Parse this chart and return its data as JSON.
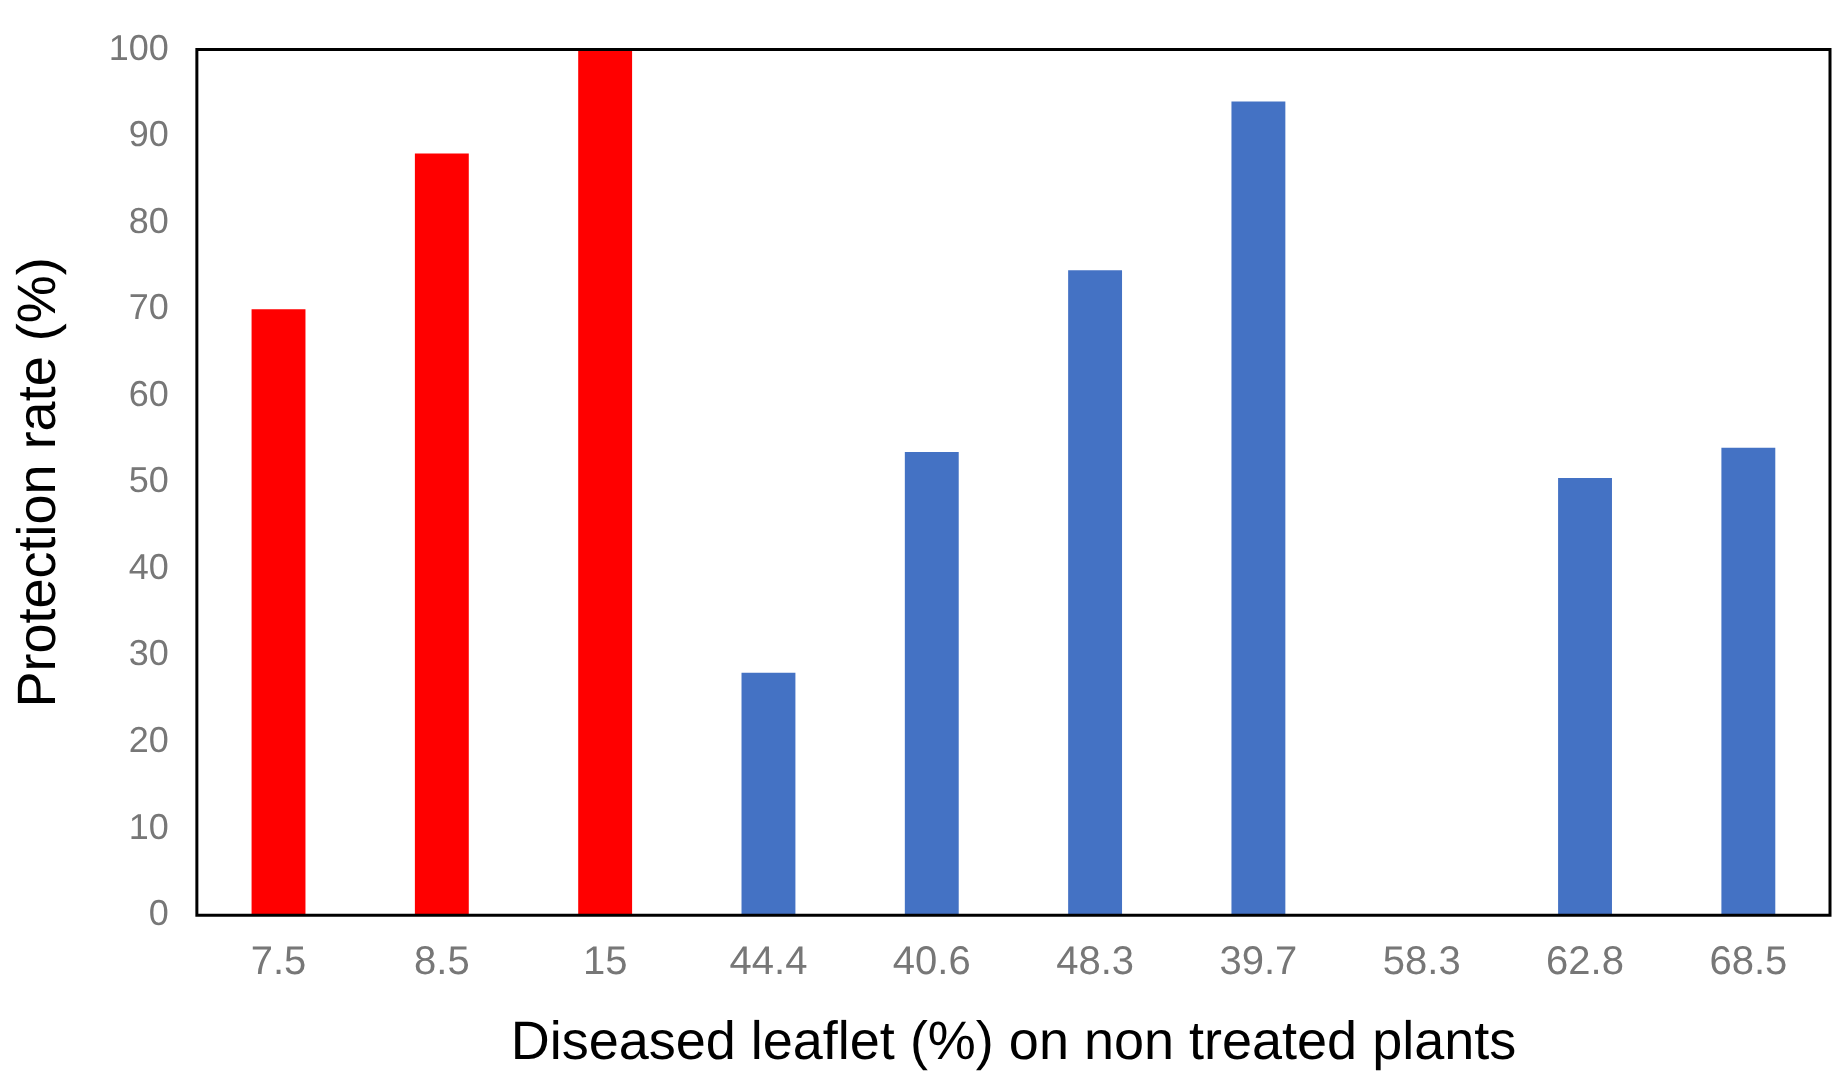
{
  "chart_data": {
    "type": "bar",
    "xlabel": "Diseased leaflet (%) on non treated plants",
    "ylabel": "Protection rate (%)",
    "categories": [
      "7.5",
      "8.5",
      "15",
      "44.4",
      "40.6",
      "48.3",
      "39.7",
      "58.3",
      "62.8",
      "68.5"
    ],
    "values": [
      70,
      88,
      100,
      28,
      53.5,
      74.5,
      94,
      0,
      50.5,
      54
    ],
    "colors": [
      "#ff0000",
      "#ff0000",
      "#ff0000",
      "#4472c4",
      "#4472c4",
      "#4472c4",
      "#4472c4",
      "#4472c4",
      "#4472c4",
      "#4472c4"
    ],
    "ylim": [
      0,
      100
    ],
    "yticks": [
      0,
      10,
      20,
      30,
      40,
      50,
      60,
      70,
      80,
      90,
      100
    ],
    "grid": false,
    "legend": false
  }
}
